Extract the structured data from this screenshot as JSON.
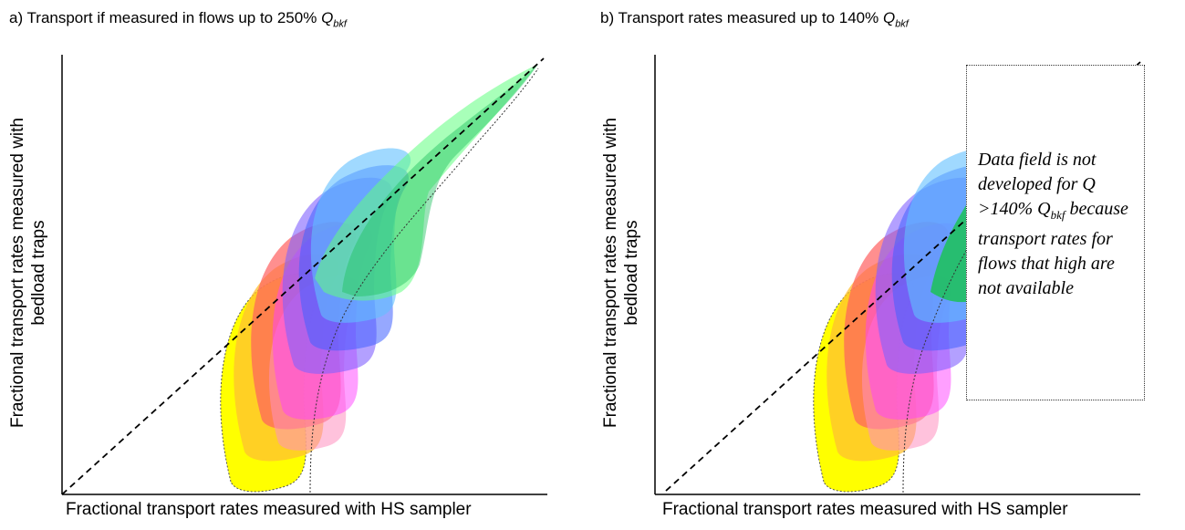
{
  "panel_a": {
    "title": "a) Transport if measured in flows up to 250% ",
    "title_q": "Q",
    "title_sub": "bkf",
    "y_label_line1": "Fractional transport rates measured with",
    "y_label_line2": "bedload traps",
    "x_label": "Fractional transport rates measured with HS sampler"
  },
  "panel_b": {
    "title": "b) Transport rates measured up to 140% ",
    "title_q": "Q",
    "title_sub": "bkf",
    "y_label_line1": "Fractional transport rates measured with",
    "y_label_line2": "bedload traps",
    "x_label": "Fractional transport rates measured with HS sampler",
    "note_part1": "Data field is not developed for Q >140% Q",
    "note_sub": "bkf",
    "note_part2": " because transport rates for flows that high are not available"
  },
  "colors": {
    "yellow": "#ffff00",
    "orange": "#ffc030",
    "red": "#ff6060",
    "pink": "#ff90c0",
    "magenta": "#ff40ff",
    "purple": "#8060ff",
    "blue": "#4060ff",
    "lightblue": "#60c0ff",
    "green": "#60ff80",
    "darkgreen": "#20c060"
  }
}
